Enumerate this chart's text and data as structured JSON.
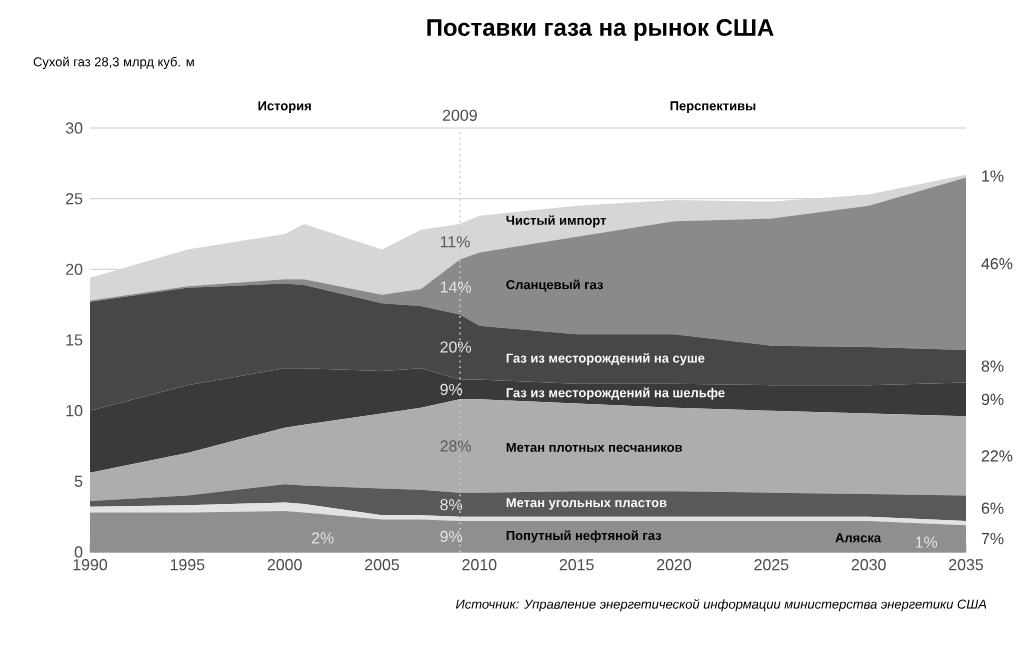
{
  "chart_data": {
    "type": "area",
    "stacked": true,
    "title": "Поставки газа на рынок США",
    "x": [
      1990,
      1995,
      2000,
      2001,
      2005,
      2007,
      2009,
      2010,
      2015,
      2020,
      2025,
      2030,
      2035
    ],
    "series": [
      {
        "name": "Попутный нефтяной газ",
        "color": "#8f8f8f",
        "values": [
          2.8,
          2.8,
          2.9,
          2.8,
          2.3,
          2.3,
          2.2,
          2.2,
          2.2,
          2.2,
          2.2,
          2.2,
          1.9
        ]
      },
      {
        "name": "Аляска",
        "color": "#e2e2e2",
        "values": [
          0.4,
          0.5,
          0.6,
          0.6,
          0.3,
          0.3,
          0.3,
          0.3,
          0.3,
          0.3,
          0.3,
          0.3,
          0.3
        ]
      },
      {
        "name": "Метан угольных пластов",
        "color": "#595959",
        "values": [
          0.4,
          0.7,
          1.3,
          1.3,
          1.9,
          1.8,
          1.7,
          1.7,
          1.8,
          1.8,
          1.7,
          1.6,
          1.8
        ]
      },
      {
        "name": "Метан плотных песчаников",
        "color": "#adadad",
        "values": [
          2.0,
          3.0,
          4.0,
          4.3,
          5.3,
          5.8,
          6.6,
          6.6,
          6.2,
          5.9,
          5.8,
          5.7,
          5.6
        ]
      },
      {
        "name": "Газ из месторождений на шельфе",
        "color": "#3a3a3a",
        "values": [
          4.4,
          4.8,
          4.2,
          4.0,
          3.0,
          2.8,
          1.4,
          1.4,
          1.4,
          1.7,
          1.8,
          2.0,
          2.4
        ]
      },
      {
        "name": "Газ из месторождений на суше",
        "color": "#474747",
        "values": [
          7.7,
          6.9,
          6.0,
          5.9,
          4.8,
          4.4,
          4.6,
          3.8,
          3.5,
          3.5,
          2.8,
          2.7,
          2.3
        ]
      },
      {
        "name": "Сланцевый газ",
        "color": "#8a8a8a",
        "values": [
          0.1,
          0.1,
          0.3,
          0.4,
          0.6,
          1.2,
          3.9,
          5.2,
          6.9,
          8.0,
          9.0,
          10.0,
          12.2
        ]
      },
      {
        "name": "Чистый импорт",
        "color": "#d6d6d6",
        "values": [
          1.6,
          2.6,
          3.2,
          3.9,
          3.2,
          4.2,
          2.5,
          2.6,
          2.2,
          1.5,
          1.2,
          0.8,
          0.2
        ]
      }
    ],
    "xlim": [
      1990,
      2035
    ],
    "xticks": [
      1990,
      1995,
      2000,
      2005,
      2010,
      2015,
      2020,
      2025,
      2030,
      2035
    ],
    "ylim": [
      0,
      30
    ],
    "yticks": [
      0,
      5,
      10,
      15,
      20,
      25,
      30
    ],
    "grid": "y",
    "ref_lines": [
      {
        "axis": "x",
        "value": 2009,
        "label": "2009",
        "color": "#c8c8c8",
        "line_style": "dotted"
      }
    ],
    "annotations": [
      "История",
      "Перспективы",
      "Источник: Управление энергетической информации министерства энергетики США",
      "Сухой газ   28,3 млрд куб. м",
      "11%",
      "14%",
      "20%",
      "9%",
      "28%",
      "8%",
      "2%",
      "9%",
      "1%",
      "46%",
      "8%",
      "9%",
      "22%",
      "6%",
      "1%",
      "7%"
    ]
  }
}
